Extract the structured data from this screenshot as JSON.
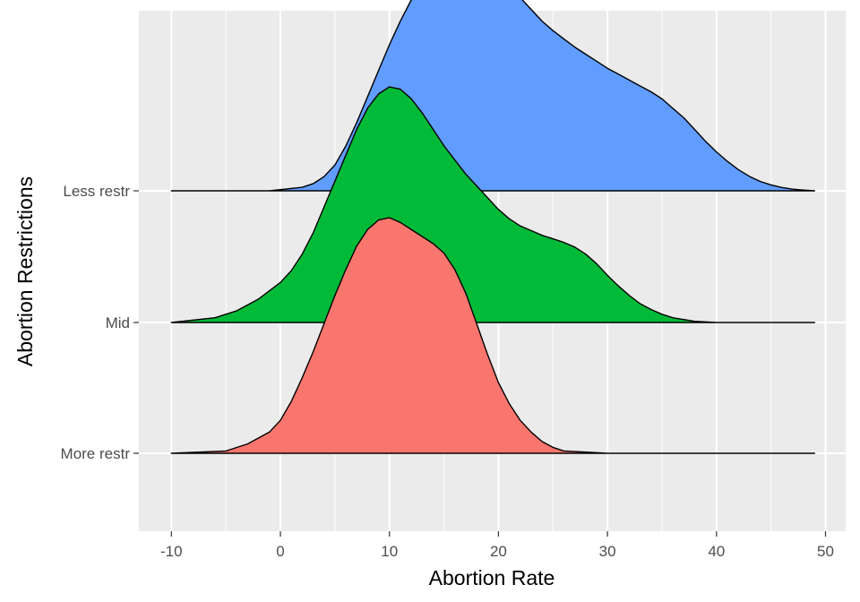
{
  "chart_data": {
    "type": "ridgeline",
    "xlabel": "Abortion Rate",
    "ylabel": "Abortion Restrictions",
    "xlim": [
      -13,
      52
    ],
    "x_ticks": [
      -10,
      0,
      10,
      20,
      30,
      40,
      50
    ],
    "x_tick_labels": [
      "-10",
      "0",
      "10",
      "20",
      "30",
      "40",
      "50"
    ],
    "grid": true,
    "legend": "none",
    "categories": [
      "More restr",
      "Mid",
      "Less restr"
    ],
    "series": [
      {
        "name": "More restr",
        "color": "#F8766D",
        "points": [
          [
            -10,
            0
          ],
          [
            -5,
            0.01
          ],
          [
            -3,
            0.04
          ],
          [
            -1,
            0.09
          ],
          [
            0,
            0.14
          ],
          [
            1,
            0.22
          ],
          [
            2,
            0.32
          ],
          [
            3,
            0.43
          ],
          [
            4,
            0.55
          ],
          [
            5,
            0.67
          ],
          [
            6,
            0.78
          ],
          [
            7,
            0.88
          ],
          [
            8,
            0.95
          ],
          [
            9,
            0.99
          ],
          [
            10,
            1.0
          ],
          [
            11,
            0.98
          ],
          [
            12,
            0.95
          ],
          [
            13,
            0.92
          ],
          [
            14,
            0.89
          ],
          [
            15,
            0.85
          ],
          [
            16,
            0.78
          ],
          [
            17,
            0.68
          ],
          [
            18,
            0.55
          ],
          [
            19,
            0.42
          ],
          [
            20,
            0.3
          ],
          [
            21,
            0.21
          ],
          [
            22,
            0.14
          ],
          [
            23,
            0.09
          ],
          [
            24,
            0.05
          ],
          [
            25,
            0.025
          ],
          [
            26,
            0.01
          ],
          [
            30,
            0
          ],
          [
            49,
            0
          ]
        ]
      },
      {
        "name": "Mid",
        "color": "#00BA38",
        "points": [
          [
            -10,
            0
          ],
          [
            -6,
            0.02
          ],
          [
            -4,
            0.05
          ],
          [
            -2,
            0.1
          ],
          [
            0,
            0.17
          ],
          [
            1,
            0.22
          ],
          [
            2,
            0.29
          ],
          [
            3,
            0.38
          ],
          [
            4,
            0.49
          ],
          [
            5,
            0.6
          ],
          [
            6,
            0.71
          ],
          [
            7,
            0.82
          ],
          [
            8,
            0.91
          ],
          [
            9,
            0.97
          ],
          [
            10,
            1.0
          ],
          [
            11,
            0.99
          ],
          [
            12,
            0.95
          ],
          [
            13,
            0.89
          ],
          [
            14,
            0.82
          ],
          [
            15,
            0.75
          ],
          [
            16,
            0.69
          ],
          [
            17,
            0.63
          ],
          [
            18,
            0.58
          ],
          [
            19,
            0.53
          ],
          [
            20,
            0.48
          ],
          [
            21,
            0.44
          ],
          [
            22,
            0.41
          ],
          [
            23,
            0.39
          ],
          [
            24,
            0.37
          ],
          [
            25,
            0.355
          ],
          [
            26,
            0.34
          ],
          [
            27,
            0.32
          ],
          [
            28,
            0.29
          ],
          [
            29,
            0.25
          ],
          [
            30,
            0.2
          ],
          [
            31,
            0.155
          ],
          [
            32,
            0.115
          ],
          [
            33,
            0.08
          ],
          [
            34,
            0.055
          ],
          [
            35,
            0.035
          ],
          [
            36,
            0.02
          ],
          [
            38,
            0.005
          ],
          [
            40,
            0
          ],
          [
            49,
            0
          ]
        ]
      },
      {
        "name": "Less restr",
        "color": "#619CFF",
        "points": [
          [
            -10,
            0
          ],
          [
            -1,
            0
          ],
          [
            0,
            0.005
          ],
          [
            2,
            0.015
          ],
          [
            3,
            0.03
          ],
          [
            4,
            0.06
          ],
          [
            5,
            0.11
          ],
          [
            6,
            0.19
          ],
          [
            7,
            0.29
          ],
          [
            8,
            0.4
          ],
          [
            9,
            0.51
          ],
          [
            10,
            0.62
          ],
          [
            11,
            0.72
          ],
          [
            12,
            0.81
          ],
          [
            13,
            0.88
          ],
          [
            14,
            0.94
          ],
          [
            15,
            0.975
          ],
          [
            16,
            0.995
          ],
          [
            17,
            1.0
          ],
          [
            18,
            0.99
          ],
          [
            19,
            0.96
          ],
          [
            20,
            0.92
          ],
          [
            21,
            0.87
          ],
          [
            22,
            0.82
          ],
          [
            23,
            0.77
          ],
          [
            24,
            0.72
          ],
          [
            25,
            0.68
          ],
          [
            26,
            0.645
          ],
          [
            27,
            0.61
          ],
          [
            28,
            0.58
          ],
          [
            29,
            0.55
          ],
          [
            30,
            0.52
          ],
          [
            31,
            0.495
          ],
          [
            32,
            0.47
          ],
          [
            33,
            0.445
          ],
          [
            34,
            0.42
          ],
          [
            35,
            0.39
          ],
          [
            36,
            0.35
          ],
          [
            37,
            0.31
          ],
          [
            38,
            0.26
          ],
          [
            39,
            0.21
          ],
          [
            40,
            0.165
          ],
          [
            41,
            0.125
          ],
          [
            42,
            0.09
          ],
          [
            43,
            0.062
          ],
          [
            44,
            0.04
          ],
          [
            45,
            0.025
          ],
          [
            46,
            0.014
          ],
          [
            47,
            0.007
          ],
          [
            48,
            0.003
          ],
          [
            49,
            0
          ]
        ]
      }
    ]
  }
}
